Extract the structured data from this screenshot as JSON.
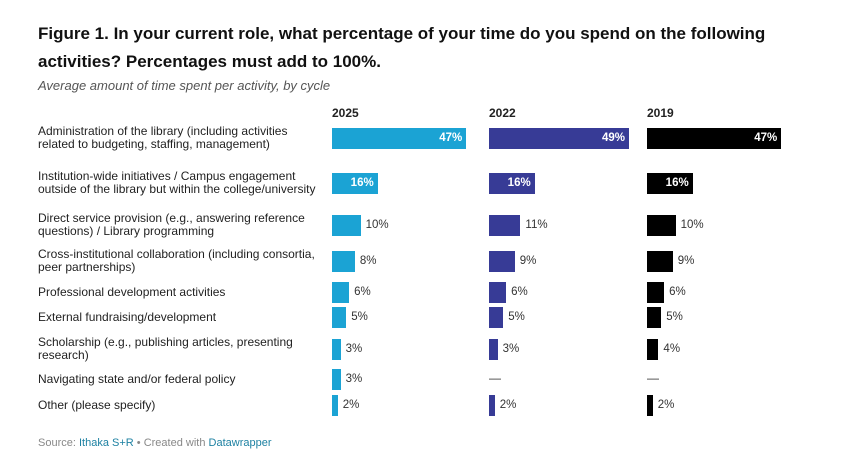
{
  "title": "Figure 1. In your current role, what percentage of your time do you spend on the following activities? Percentages must add to 100%.",
  "subtitle": "Average amount of time spent per activity, by cycle",
  "colors": {
    "2025": "#1ba3d4",
    "2022": "#373b96",
    "2019": "#000000"
  },
  "footer": {
    "source_prefix": "Source:",
    "source": "Ithaka S+R",
    "separator": "•",
    "created_with": "Created with",
    "tool": "Datawrapper"
  },
  "chart_data": {
    "type": "bar",
    "orientation": "horizontal",
    "unit": "%",
    "categories": [
      "Administration of the library (including activities related to budgeting, staffing, management)",
      "Institution-wide initiatives / Campus engagement outside of the library but within the college/university",
      "Direct service provision (e.g., answering reference questions) / Library programming",
      "Cross-institutional collaboration (including consortia, peer partnerships)",
      "Professional development activities",
      "External fundraising/development",
      "Scholarship (e.g., publishing articles, presenting research)",
      "Navigating state and/or federal policy",
      "Other (please specify)"
    ],
    "series": [
      {
        "name": "2025",
        "values": [
          47,
          16,
          10,
          8,
          6,
          5,
          3,
          3,
          2
        ]
      },
      {
        "name": "2022",
        "values": [
          49,
          16,
          11,
          9,
          6,
          5,
          3,
          null,
          2
        ]
      },
      {
        "name": "2019",
        "values": [
          47,
          16,
          10,
          9,
          6,
          5,
          4,
          null,
          2
        ]
      }
    ],
    "missing_label": "—",
    "xlim": [
      0,
      49
    ],
    "grid": false,
    "legend": "column headers"
  }
}
